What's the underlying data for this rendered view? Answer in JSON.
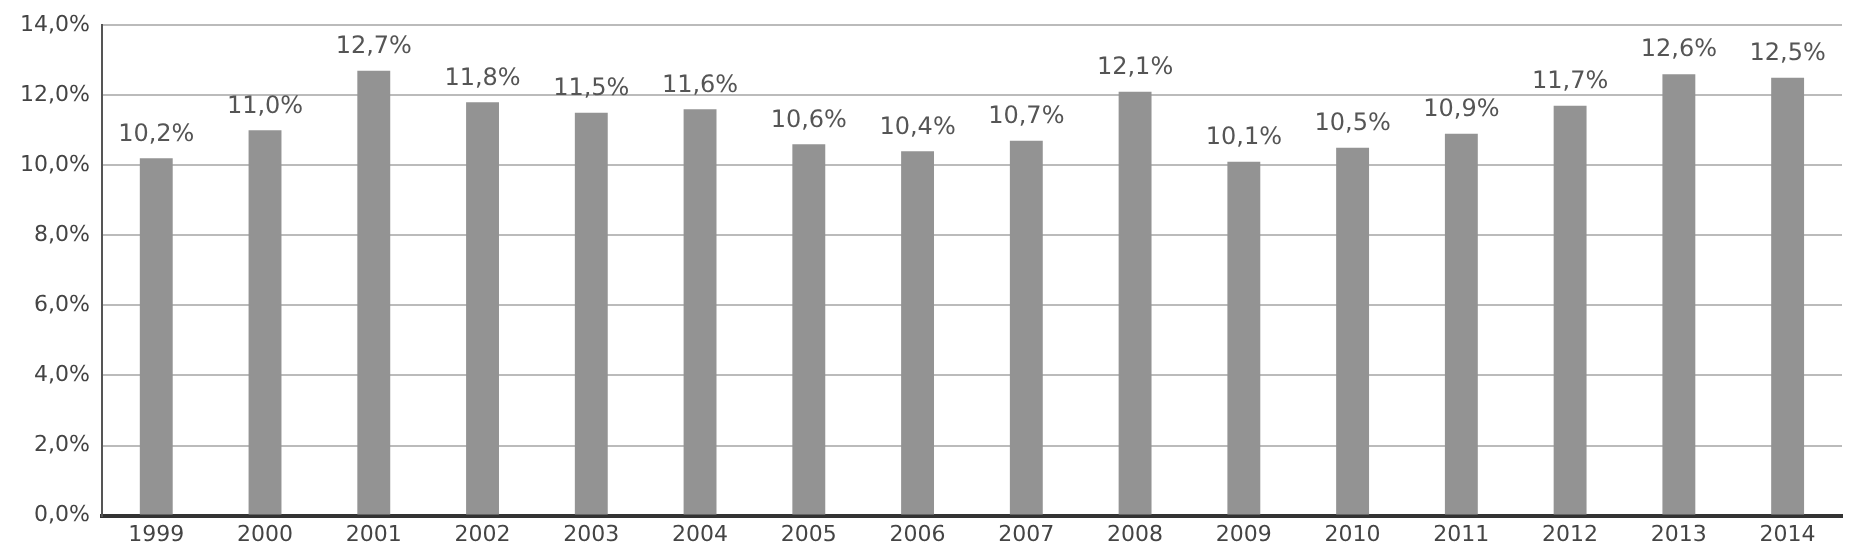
{
  "chart_data": {
    "type": "bar",
    "categories": [
      "1999",
      "2000",
      "2001",
      "2002",
      "2003",
      "2004",
      "2005",
      "2006",
      "2007",
      "2008",
      "2009",
      "2010",
      "2011",
      "2012",
      "2013",
      "2014"
    ],
    "values": [
      10.2,
      11.0,
      12.7,
      11.8,
      11.5,
      11.6,
      10.6,
      10.4,
      10.7,
      12.1,
      10.1,
      10.5,
      10.9,
      11.7,
      12.6,
      12.5
    ],
    "value_labels": [
      "10,2%",
      "11,0%",
      "12,7%",
      "11,8%",
      "11,5%",
      "11,6%",
      "10,6%",
      "10,4%",
      "10,7%",
      "12,1%",
      "10,1%",
      "10,5%",
      "10,9%",
      "11,7%",
      "12,6%",
      "12,5%"
    ],
    "color": "#939393",
    "ylim": [
      0,
      14
    ],
    "yticks": [
      {
        "value": 0,
        "label": "0,0%"
      },
      {
        "value": 2,
        "label": "2,0%"
      },
      {
        "value": 4,
        "label": "4,0%"
      },
      {
        "value": 6,
        "label": "6,0%"
      },
      {
        "value": 8,
        "label": "8,0%"
      },
      {
        "value": 10,
        "label": "10,0%"
      },
      {
        "value": 12,
        "label": "12,0%"
      },
      {
        "value": 14,
        "label": "14,0%"
      }
    ],
    "grid": "y"
  }
}
